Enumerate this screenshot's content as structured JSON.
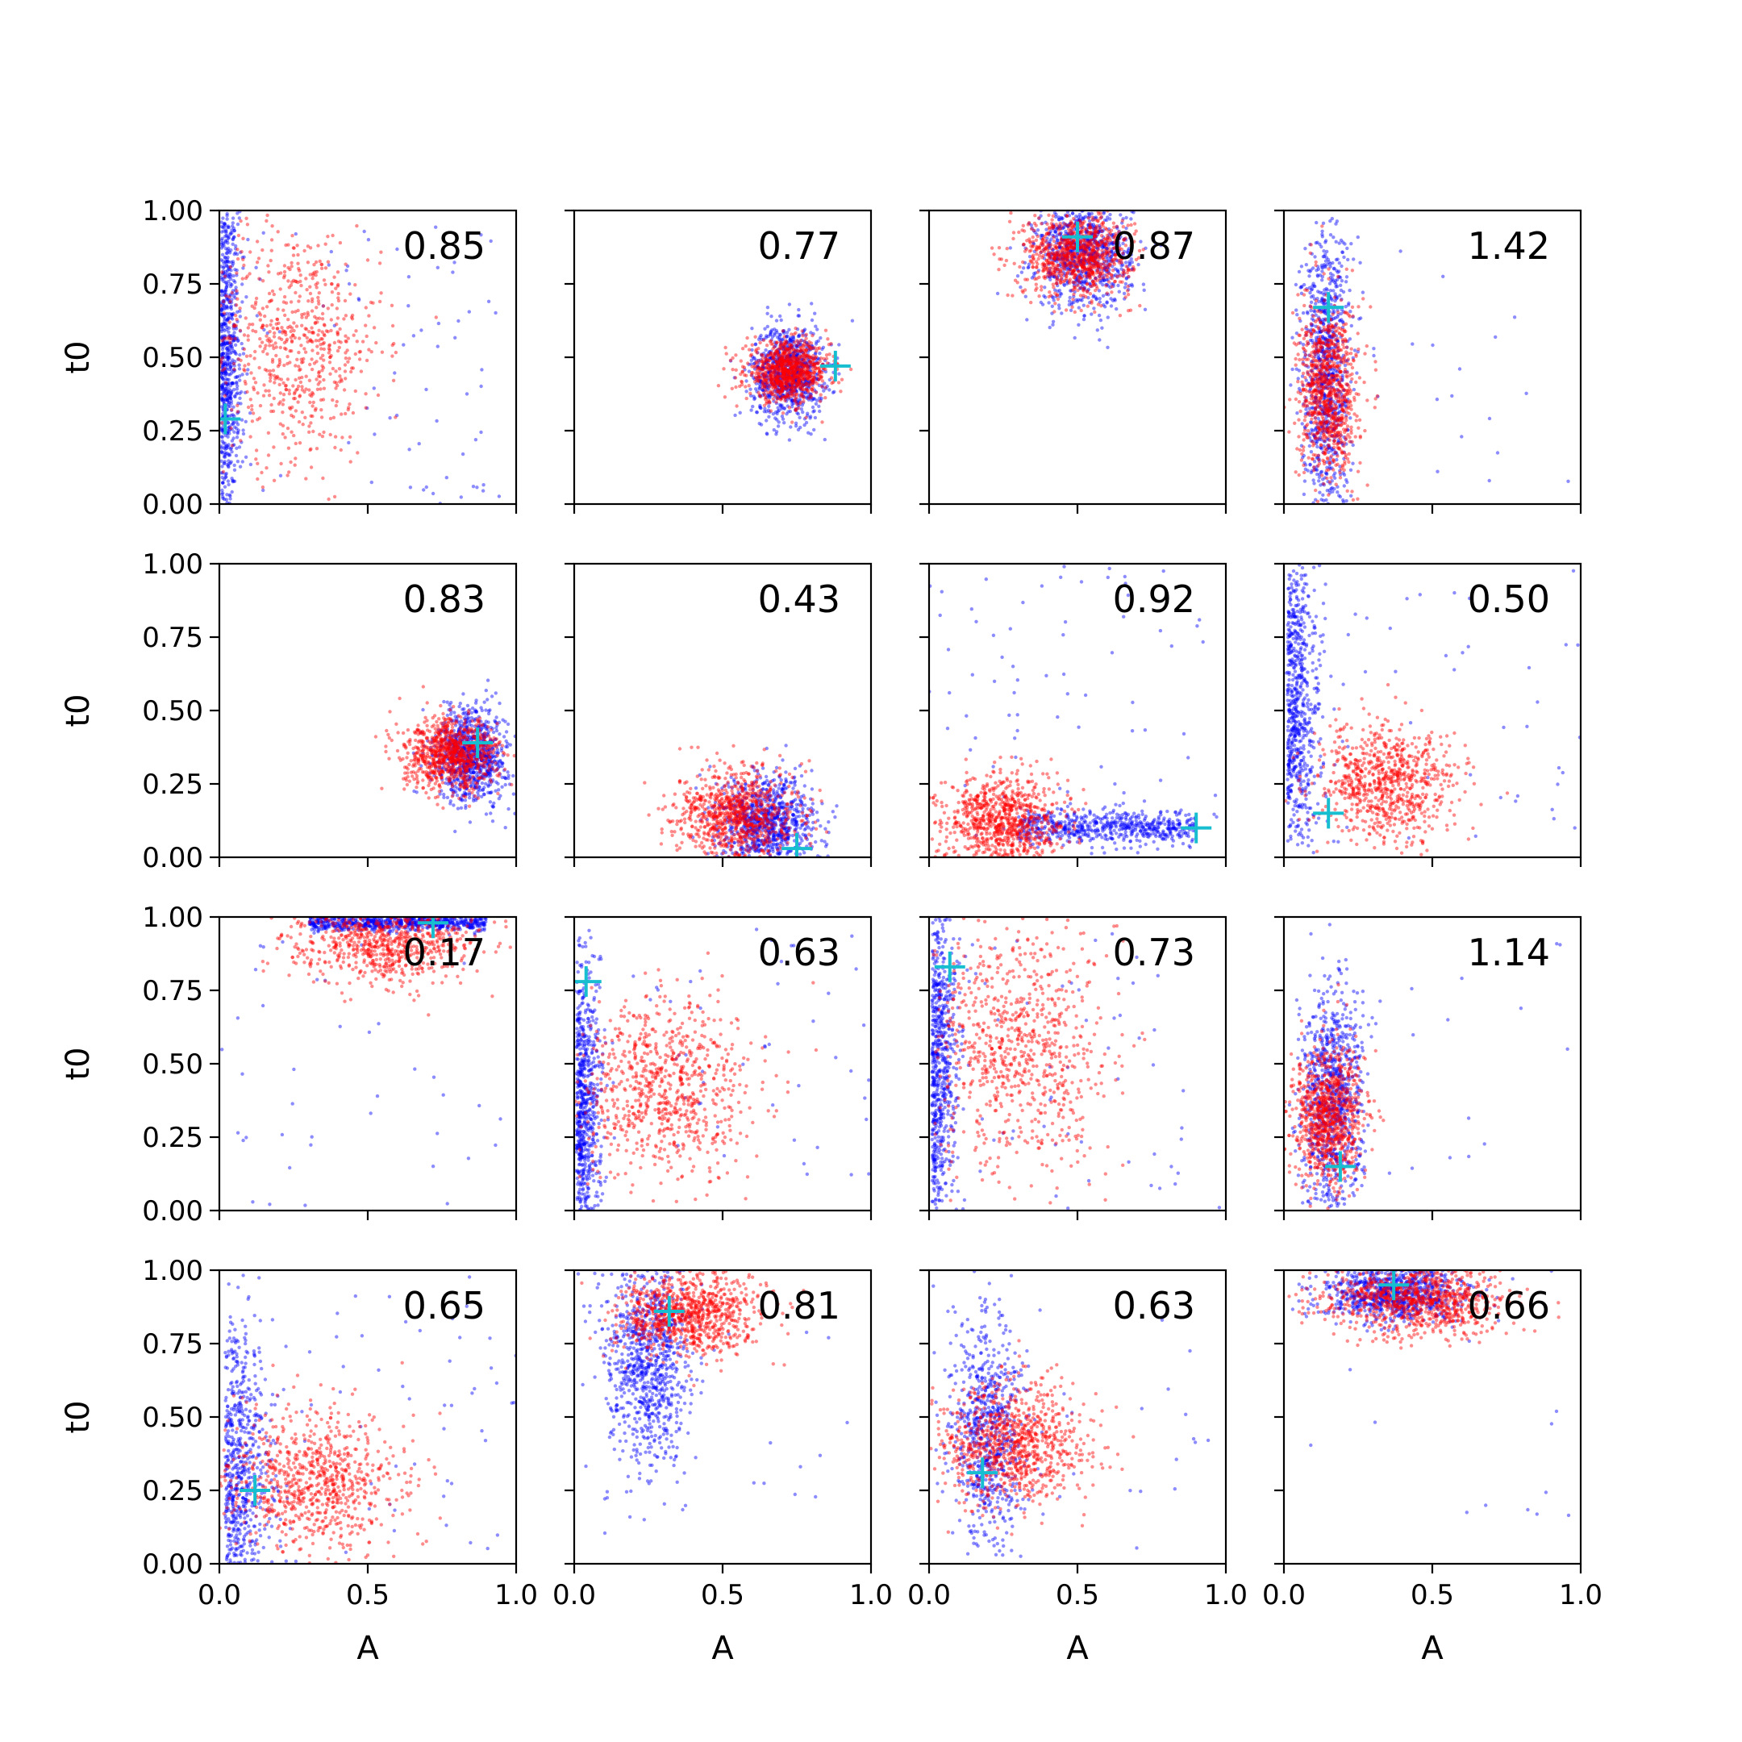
{
  "colors": {
    "series_a": "#0000ff",
    "series_b": "#ff0000",
    "marker": "#17becf",
    "axes": "#000000"
  },
  "chart_data": {
    "type": "scatter",
    "grid": false,
    "legend": "none",
    "rows": 4,
    "cols": 4,
    "xlabel": "A",
    "ylabel": "t0",
    "xlim": [
      0,
      1
    ],
    "ylim": [
      0,
      1
    ],
    "xticks": [
      "0.0",
      "0.5",
      "1.0"
    ],
    "yticks": [
      "0.00",
      "0.25",
      "0.50",
      "0.75",
      "1.00"
    ],
    "panels": [
      {
        "label": "0.85",
        "marker": [
          0.02,
          0.29
        ],
        "blue": {
          "shape": "wall",
          "cx": 0.03,
          "cy": 0.5,
          "sx": 0.03,
          "sy": 0.3,
          "n": 700,
          "outliers": 80
        },
        "red": {
          "shape": "blob",
          "cx": 0.25,
          "cy": 0.55,
          "sx": 0.15,
          "sy": 0.2,
          "n": 700
        }
      },
      {
        "label": "0.77",
        "marker": [
          0.88,
          0.47
        ],
        "blue": {
          "shape": "blob",
          "cx": 0.72,
          "cy": 0.45,
          "sx": 0.06,
          "sy": 0.08,
          "n": 900
        },
        "red": {
          "shape": "blob",
          "cx": 0.72,
          "cy": 0.45,
          "sx": 0.07,
          "sy": 0.05,
          "n": 900
        }
      },
      {
        "label": "0.87",
        "marker": [
          0.5,
          0.91
        ],
        "blue": {
          "shape": "blob",
          "cx": 0.52,
          "cy": 0.85,
          "sx": 0.08,
          "sy": 0.09,
          "n": 900
        },
        "red": {
          "shape": "blob",
          "cx": 0.5,
          "cy": 0.85,
          "sx": 0.09,
          "sy": 0.07,
          "n": 900
        }
      },
      {
        "label": "1.42",
        "marker": [
          0.15,
          0.67
        ],
        "blue": {
          "shape": "blob",
          "cx": 0.14,
          "cy": 0.45,
          "sx": 0.04,
          "sy": 0.25,
          "n": 900,
          "outliers": 30
        },
        "red": {
          "shape": "blob",
          "cx": 0.15,
          "cy": 0.38,
          "sx": 0.05,
          "sy": 0.15,
          "n": 900
        }
      },
      {
        "label": "0.83",
        "marker": [
          0.87,
          0.39
        ],
        "blue": {
          "shape": "blob",
          "cx": 0.85,
          "cy": 0.35,
          "sx": 0.06,
          "sy": 0.08,
          "n": 900
        },
        "red": {
          "shape": "blob",
          "cx": 0.78,
          "cy": 0.35,
          "sx": 0.08,
          "sy": 0.06,
          "n": 900
        }
      },
      {
        "label": "0.43",
        "marker": [
          0.75,
          0.03
        ],
        "blue": {
          "shape": "blob",
          "cx": 0.65,
          "cy": 0.12,
          "sx": 0.08,
          "sy": 0.08,
          "n": 900
        },
        "red": {
          "shape": "blob",
          "cx": 0.55,
          "cy": 0.14,
          "sx": 0.1,
          "sy": 0.08,
          "n": 900
        }
      },
      {
        "label": "0.92",
        "marker": [
          0.9,
          0.1
        ],
        "blue": {
          "shape": "band",
          "cx": 0.6,
          "cy": 0.1,
          "sx": 0.3,
          "sy": 0.03,
          "n": 600,
          "outliers": 80
        },
        "red": {
          "shape": "blob",
          "cx": 0.25,
          "cy": 0.12,
          "sx": 0.1,
          "sy": 0.08,
          "n": 900
        }
      },
      {
        "label": "0.50",
        "marker": [
          0.15,
          0.15
        ],
        "blue": {
          "shape": "wall",
          "cx": 0.06,
          "cy": 0.5,
          "sx": 0.05,
          "sy": 0.3,
          "n": 700,
          "outliers": 50
        },
        "red": {
          "shape": "blob",
          "cx": 0.35,
          "cy": 0.25,
          "sx": 0.12,
          "sy": 0.1,
          "n": 800
        }
      },
      {
        "label": "0.17",
        "marker": [
          0.72,
          0.98
        ],
        "blue": {
          "shape": "band",
          "cx": 0.6,
          "cy": 0.98,
          "sx": 0.3,
          "sy": 0.015,
          "n": 700,
          "outliers": 40
        },
        "red": {
          "shape": "blob",
          "cx": 0.55,
          "cy": 0.92,
          "sx": 0.15,
          "sy": 0.07,
          "n": 800
        }
      },
      {
        "label": "0.63",
        "marker": [
          0.04,
          0.78
        ],
        "blue": {
          "shape": "wall",
          "cx": 0.04,
          "cy": 0.35,
          "sx": 0.04,
          "sy": 0.25,
          "n": 700,
          "outliers": 60
        },
        "red": {
          "shape": "blob",
          "cx": 0.3,
          "cy": 0.42,
          "sx": 0.15,
          "sy": 0.15,
          "n": 800
        }
      },
      {
        "label": "0.73",
        "marker": [
          0.07,
          0.83
        ],
        "blue": {
          "shape": "wall",
          "cx": 0.05,
          "cy": 0.5,
          "sx": 0.04,
          "sy": 0.3,
          "n": 700,
          "outliers": 60
        },
        "red": {
          "shape": "blob",
          "cx": 0.3,
          "cy": 0.55,
          "sx": 0.15,
          "sy": 0.22,
          "n": 800
        }
      },
      {
        "label": "1.14",
        "marker": [
          0.19,
          0.15
        ],
        "blue": {
          "shape": "blob",
          "cx": 0.16,
          "cy": 0.35,
          "sx": 0.05,
          "sy": 0.2,
          "n": 900,
          "outliers": 20
        },
        "red": {
          "shape": "blob",
          "cx": 0.15,
          "cy": 0.32,
          "sx": 0.06,
          "sy": 0.12,
          "n": 900
        }
      },
      {
        "label": "0.65",
        "marker": [
          0.12,
          0.25
        ],
        "blue": {
          "shape": "wall",
          "cx": 0.1,
          "cy": 0.3,
          "sx": 0.07,
          "sy": 0.25,
          "n": 700,
          "outliers": 60
        },
        "red": {
          "shape": "blob",
          "cx": 0.32,
          "cy": 0.28,
          "sx": 0.15,
          "sy": 0.12,
          "n": 800
        }
      },
      {
        "label": "0.81",
        "marker": [
          0.32,
          0.86
        ],
        "blue": {
          "shape": "blob",
          "cx": 0.25,
          "cy": 0.7,
          "sx": 0.07,
          "sy": 0.18,
          "n": 900,
          "outliers": 20
        },
        "red": {
          "shape": "blob",
          "cx": 0.38,
          "cy": 0.85,
          "sx": 0.12,
          "sy": 0.07,
          "n": 900
        }
      },
      {
        "label": "0.63",
        "marker": [
          0.18,
          0.31
        ],
        "blue": {
          "shape": "blob",
          "cx": 0.2,
          "cy": 0.45,
          "sx": 0.06,
          "sy": 0.2,
          "n": 700,
          "outliers": 30
        },
        "red": {
          "shape": "blob",
          "cx": 0.28,
          "cy": 0.4,
          "sx": 0.12,
          "sy": 0.1,
          "n": 900
        }
      },
      {
        "label": "0.66",
        "marker": [
          0.37,
          0.95
        ],
        "blue": {
          "shape": "blob",
          "cx": 0.38,
          "cy": 0.92,
          "sx": 0.12,
          "sy": 0.05,
          "n": 900,
          "outliers": 15
        },
        "red": {
          "shape": "blob",
          "cx": 0.45,
          "cy": 0.9,
          "sx": 0.15,
          "sy": 0.06,
          "n": 900
        }
      }
    ]
  }
}
